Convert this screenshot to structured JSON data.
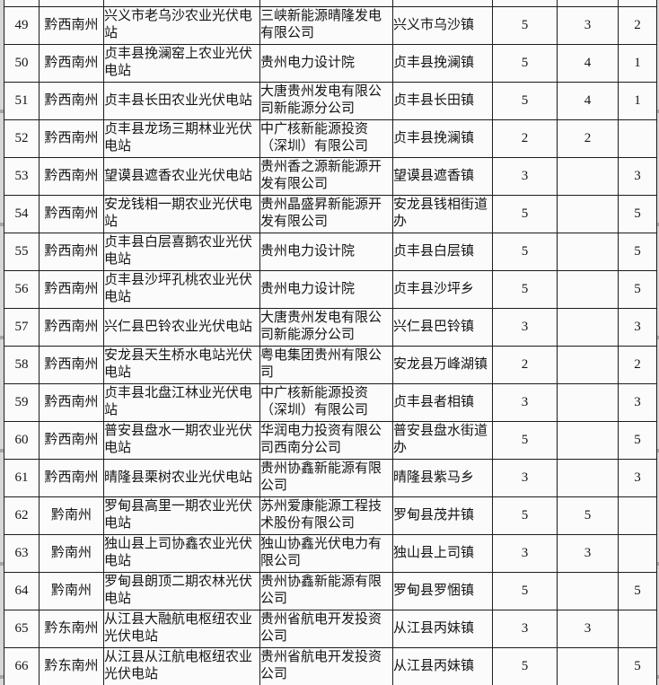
{
  "app": {
    "description": "spreadsheet table of photovoltaic power station projects, rows 49-66"
  },
  "colors": {
    "cell_background": "#fbfbfb",
    "grid_border": "#1c1c1c",
    "text": "#141414",
    "page_margin": "#d7d7d7"
  },
  "table": {
    "column_keys": [
      "no",
      "region",
      "project",
      "company",
      "town",
      "n1",
      "n2",
      "n3"
    ],
    "rows": [
      {
        "no": "49",
        "region": "黔西南州",
        "project": "兴义市老乌沙农业光伏电站",
        "company": "三峡新能源晴隆发电有限公司",
        "town": "兴义市乌沙镇",
        "n1": "5",
        "n2": "3",
        "n3": "2"
      },
      {
        "no": "50",
        "region": "黔西南州",
        "project": "贞丰县挽澜窑上农业光伏电站",
        "company": "贵州电力设计院",
        "town": "贞丰县挽澜镇",
        "n1": "5",
        "n2": "4",
        "n3": "1"
      },
      {
        "no": "51",
        "region": "黔西南州",
        "project": "贞丰县长田农业光伏电站",
        "company": "大唐贵州发电有限公司新能源分公司",
        "town": "贞丰县长田镇",
        "n1": "5",
        "n2": "4",
        "n3": "1"
      },
      {
        "no": "52",
        "region": "黔西南州",
        "project": "贞丰县龙场三期林业光伏电站",
        "company": "中广核新能源投资（深圳）有限公司",
        "town": "贞丰县挽澜镇",
        "n1": "2",
        "n2": "2",
        "n3": ""
      },
      {
        "no": "53",
        "region": "黔西南州",
        "project": "望谟县遮香农业光伏电站",
        "company": "贵州香之源新能源开发有限公司",
        "town": "望谟县遮香镇",
        "n1": "3",
        "n2": "",
        "n3": "3"
      },
      {
        "no": "54",
        "region": "黔西南州",
        "project": "安龙钱相一期农业光伏电站",
        "company": "贵州晶盛昇新能源开发有限公司",
        "town": "安龙县钱相街道办",
        "n1": "5",
        "n2": "",
        "n3": "5"
      },
      {
        "no": "55",
        "region": "黔西南州",
        "project": "贞丰县白层喜鹅农业光伏电站",
        "company": "贵州电力设计院",
        "town": "贞丰县白层镇",
        "n1": "5",
        "n2": "",
        "n3": "5"
      },
      {
        "no": "56",
        "region": "黔西南州",
        "project": "贞丰县沙坪孔桃农业光伏电站",
        "company": "贵州电力设计院",
        "town": "贞丰县沙坪乡",
        "n1": "5",
        "n2": "",
        "n3": "5"
      },
      {
        "no": "57",
        "region": "黔西南州",
        "project": "兴仁县巴铃农业光伏电站",
        "company": "大唐贵州发电有限公司新能源分公司",
        "town": "兴仁县巴铃镇",
        "n1": "3",
        "n2": "",
        "n3": "3"
      },
      {
        "no": "58",
        "region": "黔西南州",
        "project": "安龙县天生桥水电站光伏电站",
        "company": "粤电集团贵州有限公司",
        "town": "安龙县万峰湖镇",
        "n1": "2",
        "n2": "",
        "n3": "2"
      },
      {
        "no": "59",
        "region": "黔西南州",
        "project": "贞丰县北盘江林业光伏电站",
        "company": "中广核新能源投资（深圳）有限公司",
        "town": "贞丰县者相镇",
        "n1": "3",
        "n2": "",
        "n3": "3"
      },
      {
        "no": "60",
        "region": "黔西南州",
        "project": "普安县盘水一期农业光伏电站",
        "company": "华润电力投资有限公司西南分公司",
        "town": "普安县盘水街道办",
        "n1": "5",
        "n2": "",
        "n3": "5"
      },
      {
        "no": "61",
        "region": "黔西南州",
        "project": "晴隆县栗树农业光伏电站",
        "company": "贵州协鑫新能源有限公司",
        "town": "晴隆县紫马乡",
        "n1": "3",
        "n2": "",
        "n3": "3"
      },
      {
        "no": "62",
        "region": "黔南州",
        "project": "罗甸县高里一期农业光伏电站",
        "company": "苏州爱康能源工程技术股份有限公司",
        "town": "罗甸县茂井镇",
        "n1": "5",
        "n2": "5",
        "n3": ""
      },
      {
        "no": "63",
        "region": "黔南州",
        "project": "独山县上司协鑫农业光伏电站",
        "company": "独山协鑫光伏电力有限公司",
        "town": "独山县上司镇",
        "n1": "3",
        "n2": "3",
        "n3": ""
      },
      {
        "no": "64",
        "region": "黔南州",
        "project": "罗甸县朗顶二期农林光伏电站",
        "company": "贵州协鑫新能源有限公司",
        "town": "罗甸县罗悃镇",
        "n1": "5",
        "n2": "",
        "n3": "5"
      },
      {
        "no": "65",
        "region": "黔东南州",
        "project": "从江县大融航电枢纽农业光伏电站",
        "company": "贵州省航电开发投资公司",
        "town": "从江县丙妹镇",
        "n1": "3",
        "n2": "3",
        "n3": ""
      },
      {
        "no": "66",
        "region": "黔东南州",
        "project": "从江县从江航电枢纽农业光伏电站",
        "company": "贵州省航电开发投资公司",
        "town": "从江县丙妹镇",
        "n1": "5",
        "n2": "",
        "n3": "5"
      }
    ]
  }
}
